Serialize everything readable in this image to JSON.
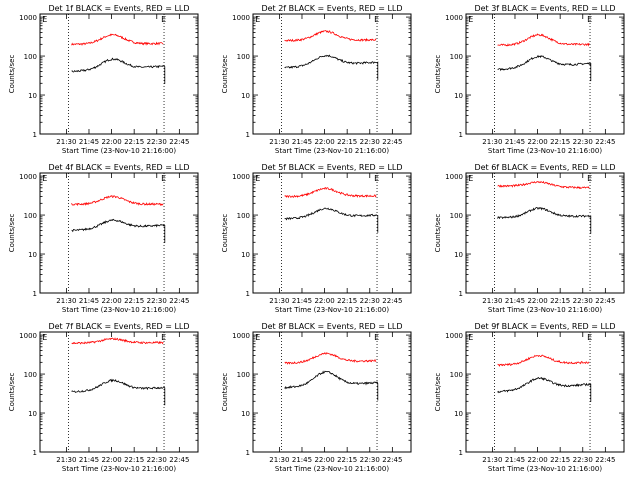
{
  "chart_data": [
    {
      "type": "line",
      "title": "Det 1f BLACK = Events, RED = LLD",
      "xlabel": "Start Time (23-Nov-10 21:16:00)",
      "ylabel": "Counts/sec",
      "yscale": "log",
      "ylim": [
        1,
        1200
      ],
      "x_tick_labels": [
        "21:30",
        "21:45",
        "22:00",
        "22:15",
        "22:30",
        "22:45"
      ],
      "y_tick_labels": [
        "1",
        "10",
        "100",
        "1000"
      ],
      "marker_label": "E",
      "series": [
        {
          "color": "#ff0000",
          "start_level": 200,
          "peak_level": 350,
          "end_level": 210
        },
        {
          "color": "#000000",
          "start_level": 40,
          "peak_level": 85,
          "end_level": 55
        }
      ]
    },
    {
      "type": "line",
      "title": "Det 2f BLACK = Events, RED = LLD",
      "xlabel": "Start Time (23-Nov-10 21:16:00)",
      "ylabel": "Counts/sec",
      "yscale": "log",
      "ylim": [
        1,
        1200
      ],
      "x_tick_labels": [
        "21:30",
        "21:45",
        "22:00",
        "22:15",
        "22:30",
        "22:45"
      ],
      "y_tick_labels": [
        "1",
        "10",
        "100",
        "1000"
      ],
      "marker_label": "E",
      "series": [
        {
          "color": "#ff0000",
          "start_level": 250,
          "peak_level": 430,
          "end_level": 260
        },
        {
          "color": "#000000",
          "start_level": 50,
          "peak_level": 105,
          "end_level": 70
        }
      ]
    },
    {
      "type": "line",
      "title": "Det 3f BLACK = Events, RED = LLD",
      "xlabel": "Start Time (23-Nov-10 21:16:00)",
      "ylabel": "Counts/sec",
      "yscale": "log",
      "ylim": [
        1,
        1200
      ],
      "x_tick_labels": [
        "21:30",
        "21:45",
        "22:00",
        "22:15",
        "22:30",
        "22:45"
      ],
      "y_tick_labels": [
        "1",
        "10",
        "100",
        "1000"
      ],
      "marker_label": "E",
      "series": [
        {
          "color": "#ff0000",
          "start_level": 190,
          "peak_level": 350,
          "end_level": 200
        },
        {
          "color": "#000000",
          "start_level": 45,
          "peak_level": 100,
          "end_level": 65
        }
      ]
    },
    {
      "type": "line",
      "title": "Det 4f BLACK = Events, RED = LLD",
      "xlabel": "Start Time (23-Nov-10 21:16:00)",
      "ylabel": "Counts/sec",
      "yscale": "log",
      "ylim": [
        1,
        1200
      ],
      "x_tick_labels": [
        "21:30",
        "21:45",
        "22:00",
        "22:15",
        "22:30",
        "22:45"
      ],
      "y_tick_labels": [
        "1",
        "10",
        "100",
        "1000"
      ],
      "marker_label": "E",
      "series": [
        {
          "color": "#ff0000",
          "start_level": 190,
          "peak_level": 300,
          "end_level": 190
        },
        {
          "color": "#000000",
          "start_level": 40,
          "peak_level": 75,
          "end_level": 55
        }
      ]
    },
    {
      "type": "line",
      "title": "Det 5f BLACK = Events, RED = LLD",
      "xlabel": "Start Time (23-Nov-10 21:16:00)",
      "ylabel": "Counts/sec",
      "yscale": "log",
      "ylim": [
        1,
        1200
      ],
      "x_tick_labels": [
        "21:30",
        "21:45",
        "22:00",
        "22:15",
        "22:30",
        "22:45"
      ],
      "y_tick_labels": [
        "1",
        "10",
        "100",
        "1000"
      ],
      "marker_label": "E",
      "series": [
        {
          "color": "#ff0000",
          "start_level": 300,
          "peak_level": 480,
          "end_level": 310
        },
        {
          "color": "#000000",
          "start_level": 80,
          "peak_level": 150,
          "end_level": 100
        }
      ]
    },
    {
      "type": "line",
      "title": "Det 6f BLACK = Events, RED = LLD",
      "xlabel": "Start Time (23-Nov-10 21:16:00)",
      "ylabel": "Counts/sec",
      "yscale": "log",
      "ylim": [
        1,
        1200
      ],
      "x_tick_labels": [
        "21:30",
        "21:45",
        "22:00",
        "22:15",
        "22:30",
        "22:45"
      ],
      "y_tick_labels": [
        "1",
        "10",
        "100",
        "1000"
      ],
      "marker_label": "E",
      "series": [
        {
          "color": "#ff0000",
          "start_level": 560,
          "peak_level": 700,
          "end_level": 500
        },
        {
          "color": "#000000",
          "start_level": 85,
          "peak_level": 150,
          "end_level": 95
        }
      ]
    },
    {
      "type": "line",
      "title": "Det 7f BLACK = Events, RED = LLD",
      "xlabel": "Start Time (23-Nov-10 21:16:00)",
      "ylabel": "Counts/sec",
      "yscale": "log",
      "ylim": [
        1,
        1200
      ],
      "x_tick_labels": [
        "21:30",
        "21:45",
        "22:00",
        "22:15",
        "22:30",
        "22:45"
      ],
      "y_tick_labels": [
        "1",
        "10",
        "100",
        "1000"
      ],
      "marker_label": "E",
      "series": [
        {
          "color": "#ff0000",
          "start_level": 620,
          "peak_level": 800,
          "end_level": 640
        },
        {
          "color": "#000000",
          "start_level": 35,
          "peak_level": 70,
          "end_level": 45
        }
      ]
    },
    {
      "type": "line",
      "title": "Det 8f BLACK = Events, RED = LLD",
      "xlabel": "Start Time (23-Nov-10 21:16:00)",
      "ylabel": "Counts/sec",
      "yscale": "log",
      "ylim": [
        1,
        1200
      ],
      "x_tick_labels": [
        "21:30",
        "21:45",
        "22:00",
        "22:15",
        "22:30",
        "22:45"
      ],
      "y_tick_labels": [
        "1",
        "10",
        "100",
        "1000"
      ],
      "marker_label": "E",
      "series": [
        {
          "color": "#ff0000",
          "start_level": 190,
          "peak_level": 340,
          "end_level": 220
        },
        {
          "color": "#000000",
          "start_level": 45,
          "peak_level": 115,
          "end_level": 60
        }
      ]
    },
    {
      "type": "line",
      "title": "Det 9f BLACK = Events, RED = LLD",
      "xlabel": "Start Time (23-Nov-10 21:16:00)",
      "ylabel": "Counts/sec",
      "yscale": "log",
      "ylim": [
        1,
        1200
      ],
      "x_tick_labels": [
        "21:30",
        "21:45",
        "22:00",
        "22:15",
        "22:30",
        "22:45"
      ],
      "y_tick_labels": [
        "1",
        "10",
        "100",
        "1000"
      ],
      "marker_label": "E",
      "series": [
        {
          "color": "#ff0000",
          "start_level": 170,
          "peak_level": 300,
          "end_level": 200
        },
        {
          "color": "#000000",
          "start_level": 35,
          "peak_level": 80,
          "end_level": 55
        }
      ]
    }
  ]
}
